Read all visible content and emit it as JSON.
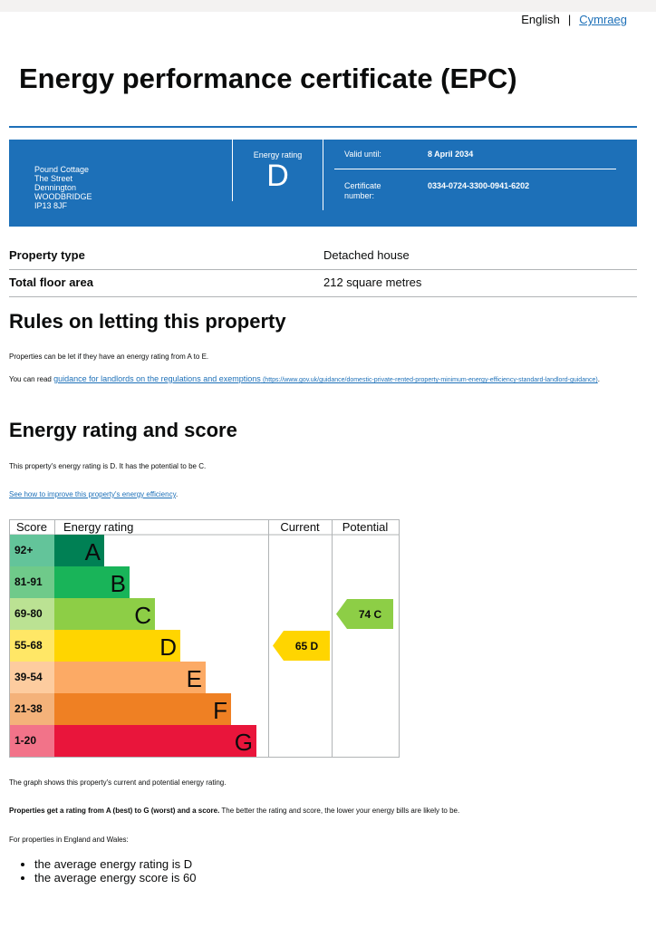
{
  "language": {
    "english": "English",
    "separator": "|",
    "welsh": "Cymraeg"
  },
  "title": "Energy performance certificate (EPC)",
  "address": [
    "Pound Cottage",
    "The Street",
    "Dennington",
    "WOODBRIDGE",
    "IP13 8JF"
  ],
  "summary": {
    "rating_label": "Energy rating",
    "rating": "D",
    "valid_label": "Valid until:",
    "valid_value": "8 April 2034",
    "cert_label": "Certificate number:",
    "cert_value": "0334-0724-3300-0941-6202"
  },
  "property": {
    "type_label": "Property type",
    "type_value": "Detached house",
    "area_label": "Total floor area",
    "area_value": "212 square metres"
  },
  "letting": {
    "heading": "Rules on letting this property",
    "para1": "Properties can be let if they have an energy rating from A to E.",
    "para2_prefix": "You can read ",
    "para2_link": "guidance for landlords on the regulations and exemptions",
    "para2_url": "(https://www.gov.uk/guidance/domestic-private-rented-property-minimum-energy-efficiency-standard-landlord-guidance)",
    "para2_suffix": "."
  },
  "energy": {
    "heading": "Energy rating and score",
    "para1": "This property's energy rating is D. It has the potential to be C.",
    "improve_link": "See how to improve this property's energy efficiency",
    "improve_suffix": "."
  },
  "chart_data": {
    "type": "table",
    "headers": {
      "score": "Score",
      "rating": "Energy rating",
      "current": "Current",
      "potential": "Potential"
    },
    "bands": [
      {
        "score": "92+",
        "letter": "A",
        "color": "#008054",
        "light": "#63c49a"
      },
      {
        "score": "81-91",
        "letter": "B",
        "color": "#19b459",
        "light": "#6fca8a"
      },
      {
        "score": "69-80",
        "letter": "C",
        "color": "#8dce46",
        "light": "#bbe293"
      },
      {
        "score": "55-68",
        "letter": "D",
        "color": "#ffd500",
        "light": "#ffe766"
      },
      {
        "score": "39-54",
        "letter": "E",
        "color": "#fcaa65",
        "light": "#fdcc9f"
      },
      {
        "score": "21-38",
        "letter": "F",
        "color": "#ef8023",
        "light": "#f4b27a"
      },
      {
        "score": "1-20",
        "letter": "G",
        "color": "#e9153b",
        "light": "#f27389"
      }
    ],
    "current": {
      "score": 65,
      "letter": "D",
      "label": "65  D"
    },
    "potential": {
      "score": 74,
      "letter": "C",
      "label": "74  C"
    }
  },
  "footer": {
    "graph_note": "The graph shows this property's current and potential energy rating.",
    "bold_part": "Properties get a rating from A (best) to G (worst) and a score.",
    "rest_part": " The better the rating and score, the lower your energy bills are likely to be.",
    "england_wales": "For properties in England and Wales:",
    "avg_rating": "the average energy rating is D",
    "avg_score": "the average energy score is 60"
  }
}
